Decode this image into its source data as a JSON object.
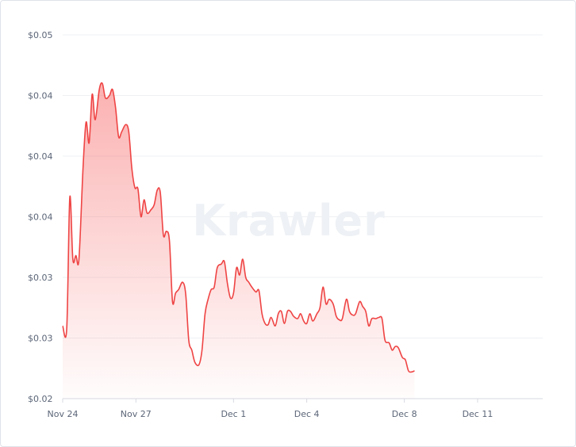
{
  "watermark": "Krawler",
  "colors": {
    "line": "#ef4444",
    "fill_top": "#f87171",
    "grid": "#eef0f3",
    "axis": "#d6dae1",
    "tick_text": "#5b6577"
  },
  "chart_data": {
    "type": "area",
    "title": "",
    "xlabel": "",
    "ylabel": "",
    "ylim": [
      0.02,
      0.05
    ],
    "grid": true,
    "legend": "none",
    "y_ticks": [
      {
        "value": 0.05,
        "label": "$0.05"
      },
      {
        "value": 0.045,
        "label": "$0.04"
      },
      {
        "value": 0.04,
        "label": "$0.04"
      },
      {
        "value": 0.035,
        "label": "$0.04"
      },
      {
        "value": 0.03,
        "label": "$0.03"
      },
      {
        "value": 0.025,
        "label": "$0.03"
      },
      {
        "value": 0.02,
        "label": "$0.02"
      }
    ],
    "x_ticks": [
      {
        "value": "2023-11-24",
        "label": "Nov 24"
      },
      {
        "value": "2023-11-27",
        "label": "Nov 27"
      },
      {
        "value": "2023-12-01",
        "label": "Dec 1"
      },
      {
        "value": "2023-12-04",
        "label": "Dec 4"
      },
      {
        "value": "2023-12-08",
        "label": "Dec 8"
      },
      {
        "value": "2023-12-11",
        "label": "Dec 11"
      }
    ],
    "xlim": [
      "2023-11-24 00:00",
      "2023-12-13 16:00"
    ],
    "series": [
      {
        "points": [
          [
            "2023-11-24 00:00",
            0.026
          ],
          [
            "2023-11-24 04:00",
            0.0258
          ],
          [
            "2023-11-24 07:00",
            0.0366
          ],
          [
            "2023-11-24 10:00",
            0.0315
          ],
          [
            "2023-11-24 13:00",
            0.0318
          ],
          [
            "2023-11-24 16:00",
            0.0315
          ],
          [
            "2023-11-24 20:00",
            0.039
          ],
          [
            "2023-11-24 23:00",
            0.0428
          ],
          [
            "2023-11-25 02:00",
            0.0411
          ],
          [
            "2023-11-25 05:00",
            0.0451
          ],
          [
            "2023-11-25 08:00",
            0.043
          ],
          [
            "2023-11-25 12:00",
            0.0455
          ],
          [
            "2023-11-25 15:00",
            0.046
          ],
          [
            "2023-11-25 18:00",
            0.0448
          ],
          [
            "2023-11-25 22:00",
            0.045
          ],
          [
            "2023-11-26 01:00",
            0.0455
          ],
          [
            "2023-11-26 04:00",
            0.044
          ],
          [
            "2023-11-26 07:00",
            0.0416
          ],
          [
            "2023-11-26 10:00",
            0.042
          ],
          [
            "2023-11-26 14:00",
            0.0426
          ],
          [
            "2023-11-26 17:00",
            0.042
          ],
          [
            "2023-11-26 20:00",
            0.039
          ],
          [
            "2023-11-26 23:00",
            0.0374
          ],
          [
            "2023-11-27 02:00",
            0.0373
          ],
          [
            "2023-11-27 05:00",
            0.035
          ],
          [
            "2023-11-27 08:00",
            0.0364
          ],
          [
            "2023-11-27 11:00",
            0.0353
          ],
          [
            "2023-11-27 15:00",
            0.0356
          ],
          [
            "2023-11-27 18:00",
            0.036
          ],
          [
            "2023-11-27 21:00",
            0.0372
          ],
          [
            "2023-11-28 00:00",
            0.037
          ],
          [
            "2023-11-28 03:00",
            0.0335
          ],
          [
            "2023-11-28 06:00",
            0.0338
          ],
          [
            "2023-11-28 09:00",
            0.033
          ],
          [
            "2023-11-28 12:00",
            0.028
          ],
          [
            "2023-11-28 15:00",
            0.0287
          ],
          [
            "2023-11-28 18:00",
            0.029
          ],
          [
            "2023-11-28 22:00",
            0.0296
          ],
          [
            "2023-11-29 01:00",
            0.0286
          ],
          [
            "2023-11-29 04:00",
            0.0248
          ],
          [
            "2023-11-29 07:00",
            0.024
          ],
          [
            "2023-11-29 10:00",
            0.023
          ],
          [
            "2023-11-29 14:00",
            0.0228
          ],
          [
            "2023-11-29 17:00",
            0.024
          ],
          [
            "2023-11-29 20:00",
            0.027
          ],
          [
            "2023-11-29 23:00",
            0.0282
          ],
          [
            "2023-11-30 02:00",
            0.029
          ],
          [
            "2023-11-30 05:00",
            0.0292
          ],
          [
            "2023-11-30 08:00",
            0.0308
          ],
          [
            "2023-11-30 12:00",
            0.0311
          ],
          [
            "2023-11-30 15:00",
            0.0313
          ],
          [
            "2023-11-30 18:00",
            0.0295
          ],
          [
            "2023-11-30 21:00",
            0.0283
          ],
          [
            "2023-12-01 00:00",
            0.0287
          ],
          [
            "2023-12-01 03:00",
            0.0308
          ],
          [
            "2023-12-01 06:00",
            0.0302
          ],
          [
            "2023-12-01 09:00",
            0.0315
          ],
          [
            "2023-12-01 12:00",
            0.03
          ],
          [
            "2023-12-01 15:00",
            0.0296
          ],
          [
            "2023-12-01 18:00",
            0.0292
          ],
          [
            "2023-12-01 22:00",
            0.0288
          ],
          [
            "2023-12-02 01:00",
            0.0289
          ],
          [
            "2023-12-02 04:00",
            0.027
          ],
          [
            "2023-12-02 07:00",
            0.0262
          ],
          [
            "2023-12-02 10:00",
            0.0261
          ],
          [
            "2023-12-02 13:00",
            0.0267
          ],
          [
            "2023-12-02 17:00",
            0.026
          ],
          [
            "2023-12-02 20:00",
            0.027
          ],
          [
            "2023-12-02 23:00",
            0.0272
          ],
          [
            "2023-12-03 02:00",
            0.0262
          ],
          [
            "2023-12-03 05:00",
            0.0272
          ],
          [
            "2023-12-03 08:00",
            0.0272
          ],
          [
            "2023-12-03 11:00",
            0.0268
          ],
          [
            "2023-12-03 15:00",
            0.0266
          ],
          [
            "2023-12-03 18:00",
            0.027
          ],
          [
            "2023-12-03 21:00",
            0.0264
          ],
          [
            "2023-12-04 00:00",
            0.0262
          ],
          [
            "2023-12-04 03:00",
            0.027
          ],
          [
            "2023-12-04 06:00",
            0.0264
          ],
          [
            "2023-12-04 10:00",
            0.027
          ],
          [
            "2023-12-04 13:00",
            0.0275
          ],
          [
            "2023-12-04 16:00",
            0.0292
          ],
          [
            "2023-12-04 19:00",
            0.0278
          ],
          [
            "2023-12-04 22:00",
            0.0282
          ],
          [
            "2023-12-05 02:00",
            0.0278
          ],
          [
            "2023-12-05 05:00",
            0.0268
          ],
          [
            "2023-12-05 08:00",
            0.0265
          ],
          [
            "2023-12-05 11:00",
            0.0266
          ],
          [
            "2023-12-05 15:00",
            0.0282
          ],
          [
            "2023-12-05 18:00",
            0.0272
          ],
          [
            "2023-12-05 21:00",
            0.0269
          ],
          [
            "2023-12-06 00:00",
            0.027
          ],
          [
            "2023-12-06 04:00",
            0.028
          ],
          [
            "2023-12-06 07:00",
            0.0276
          ],
          [
            "2023-12-06 10:00",
            0.0272
          ],
          [
            "2023-12-06 13:00",
            0.026
          ],
          [
            "2023-12-06 16:00",
            0.0266
          ],
          [
            "2023-12-06 20:00",
            0.0266
          ],
          [
            "2023-12-06 23:00",
            0.0267
          ],
          [
            "2023-12-07 02:00",
            0.0266
          ],
          [
            "2023-12-07 05:00",
            0.0248
          ],
          [
            "2023-12-07 09:00",
            0.0246
          ],
          [
            "2023-12-07 12:00",
            0.024
          ],
          [
            "2023-12-07 15:00",
            0.0243
          ],
          [
            "2023-12-07 18:00",
            0.0242
          ],
          [
            "2023-12-07 22:00",
            0.0234
          ],
          [
            "2023-12-08 01:00",
            0.0232
          ],
          [
            "2023-12-08 04:00",
            0.0223
          ],
          [
            "2023-12-08 07:00",
            0.0222
          ],
          [
            "2023-12-08 10:00",
            0.0223
          ]
        ]
      }
    ]
  }
}
